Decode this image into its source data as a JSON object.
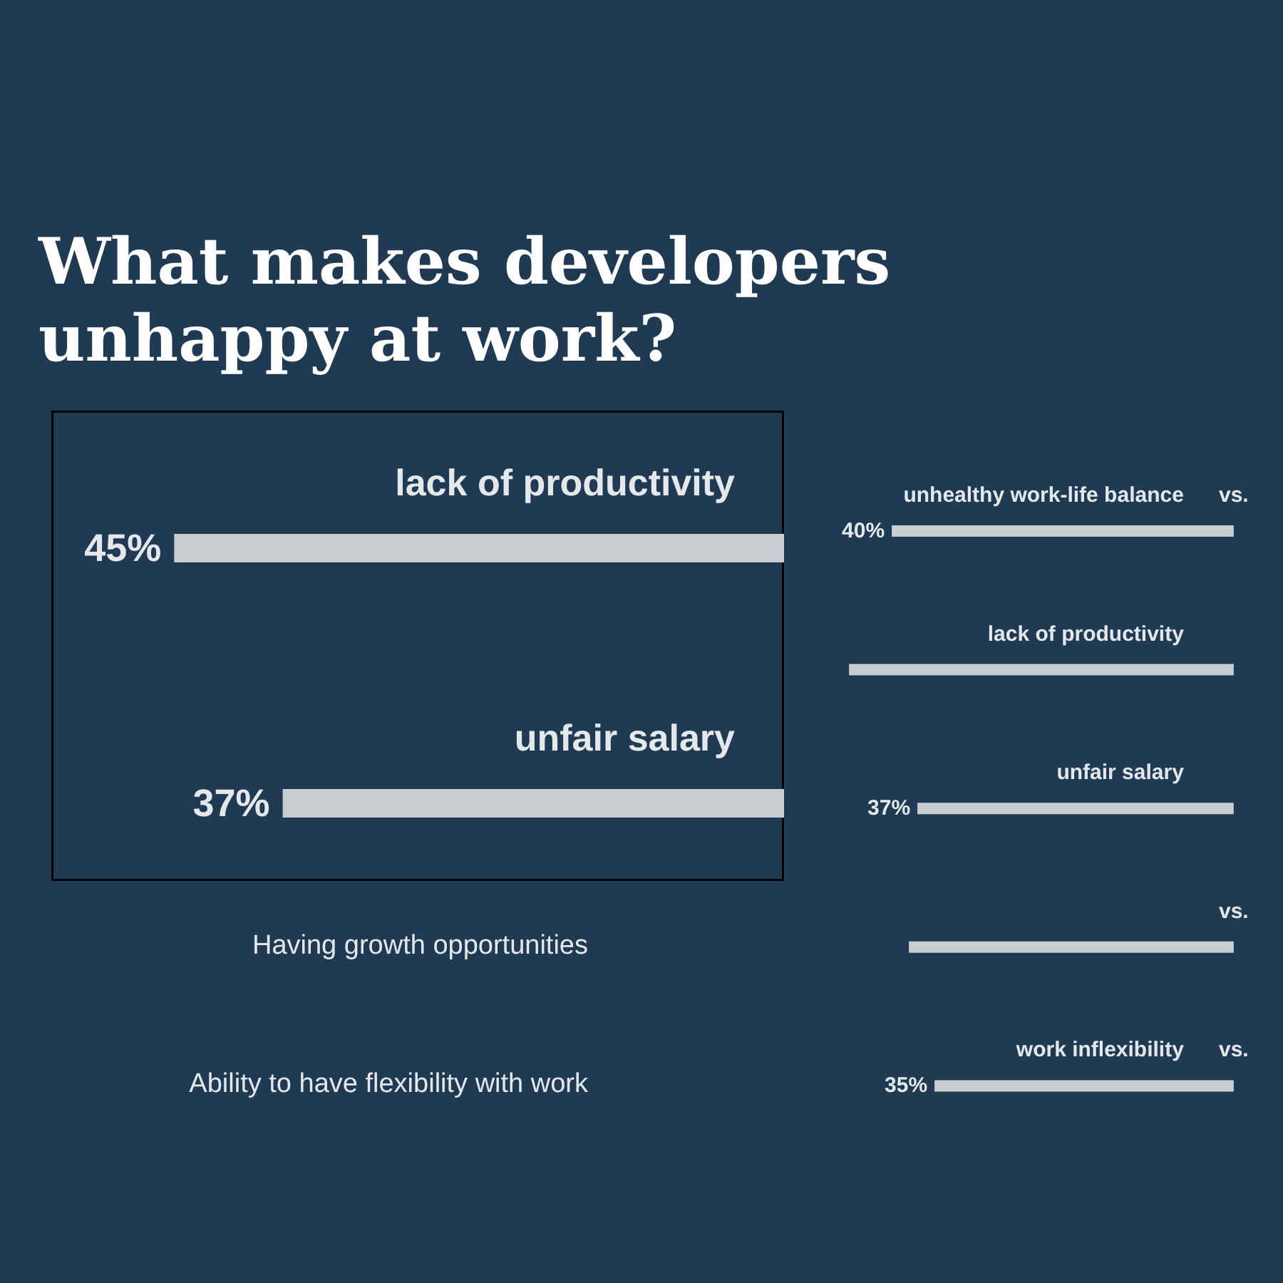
{
  "chart_data": [
    {
      "type": "bar",
      "orientation": "horizontal",
      "title": "What makes developers unhappy at work?",
      "categories": [
        "lack of productivity",
        "unfair salary"
      ],
      "values": [
        45,
        37
      ],
      "color": "#c9ced3",
      "value_labels": [
        "45%",
        "37%"
      ],
      "annotations": [
        "Having growth opportunities",
        "Ability to have flexibility with work"
      ]
    },
    {
      "type": "bar",
      "orientation": "horizontal",
      "categories": [
        "unhealthy work-life balance",
        "lack of productivity",
        "unfair salary",
        null,
        "work inflexibility"
      ],
      "values": [
        40,
        45,
        37,
        38,
        35
      ],
      "color": "#c9ced3",
      "value_labels": [
        "40%",
        null,
        "37%",
        null,
        "35%"
      ],
      "annotations": [
        "vs.",
        "vs.",
        "vs."
      ]
    }
  ]
}
